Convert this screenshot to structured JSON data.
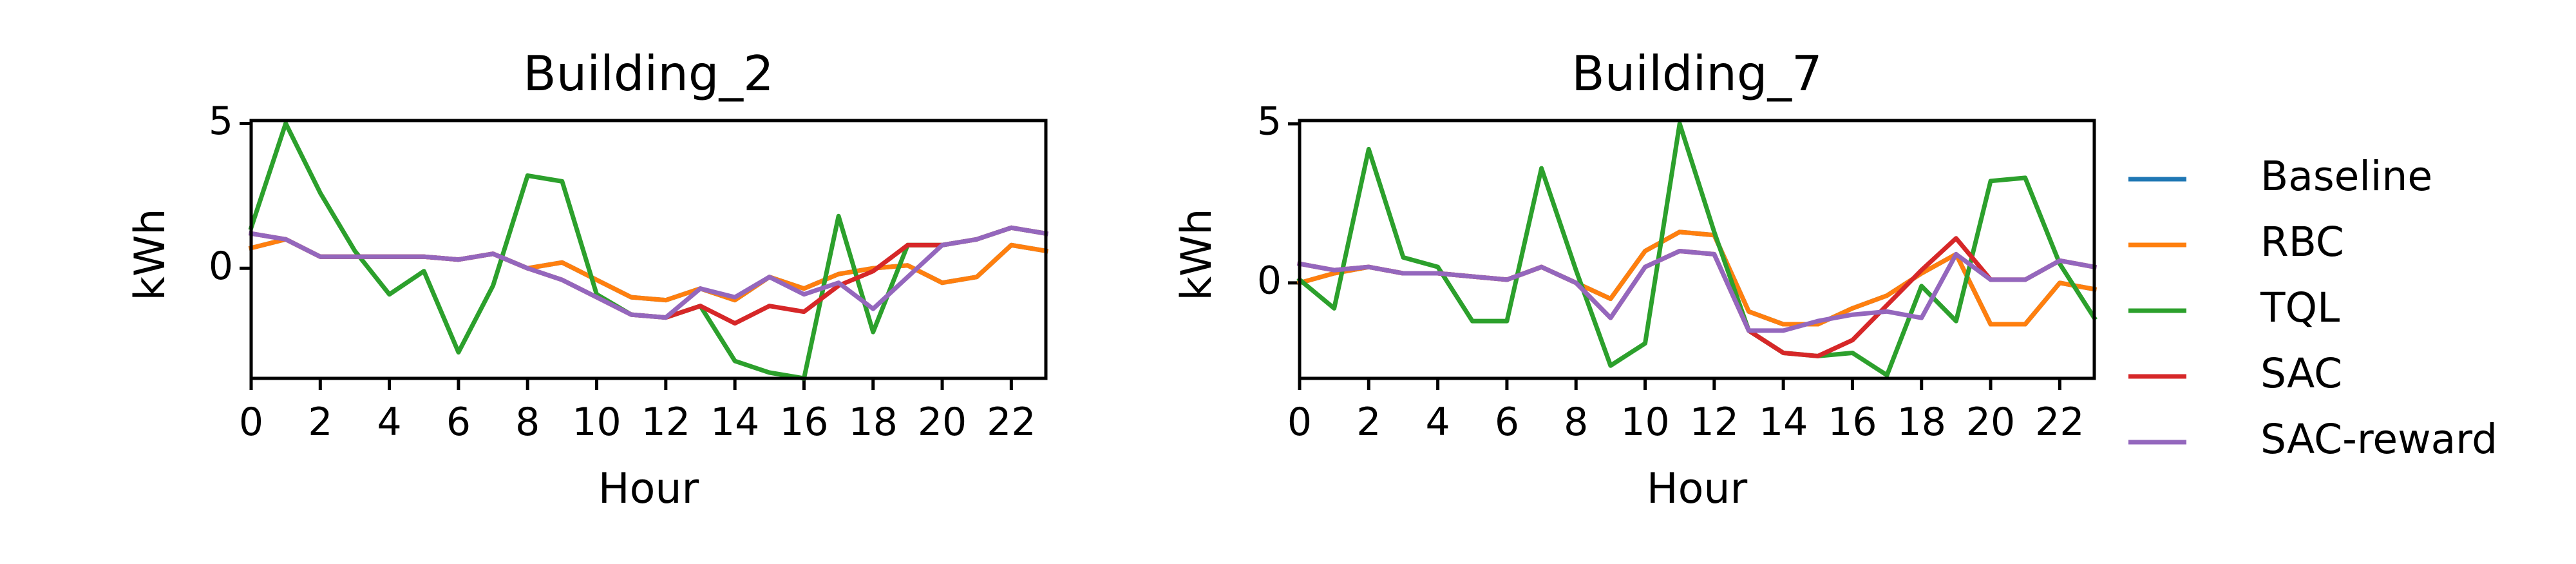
{
  "colors": {
    "Baseline": "#1f77b4",
    "RBC": "#ff7f0e",
    "TQL": "#2ca02c",
    "SAC": "#d62728",
    "SAC-reward": "#9467bd"
  },
  "legend": {
    "placement": "right",
    "entries": [
      "Baseline",
      "RBC",
      "TQL",
      "SAC",
      "SAC-reward"
    ]
  },
  "chart_data": [
    {
      "type": "line",
      "title": "Building_2",
      "xlabel": "Hour",
      "ylabel": "kWh",
      "xlim": [
        0,
        23
      ],
      "ylim": [
        -3.8,
        5.1
      ],
      "xticks": [
        0,
        2,
        4,
        6,
        8,
        10,
        12,
        14,
        16,
        18,
        20,
        22
      ],
      "yticks": [
        0,
        5
      ],
      "grid": false,
      "x": [
        0,
        1,
        2,
        3,
        4,
        5,
        6,
        7,
        8,
        9,
        10,
        11,
        12,
        13,
        14,
        15,
        16,
        17,
        18,
        19,
        20,
        21,
        22,
        23
      ],
      "series": [
        {
          "name": "Baseline",
          "values": [
            0.7,
            1.0,
            0.4,
            0.4,
            0.4,
            0.4,
            0.3,
            0.5,
            0.0,
            0.2,
            -0.4,
            -1.0,
            -1.1,
            -0.7,
            -1.1,
            -0.3,
            -0.7,
            -0.2,
            0.0,
            0.1,
            -0.5,
            -0.3,
            0.8,
            0.6
          ]
        },
        {
          "name": "RBC",
          "values": [
            0.7,
            1.0,
            0.4,
            0.4,
            0.4,
            0.4,
            0.3,
            0.5,
            0.0,
            0.2,
            -0.4,
            -1.0,
            -1.1,
            -0.7,
            -1.1,
            -0.3,
            -0.7,
            -0.2,
            0.0,
            0.1,
            -0.5,
            -0.3,
            0.8,
            0.6
          ]
        },
        {
          "name": "TQL",
          "values": [
            1.4,
            5.0,
            2.6,
            0.6,
            -0.9,
            -0.1,
            -2.9,
            -0.6,
            3.2,
            3.0,
            -0.9,
            -1.6,
            -1.7,
            -1.3,
            -3.2,
            -3.6,
            -3.8,
            1.8,
            -2.2,
            0.8,
            0.8,
            1.0,
            1.4,
            1.2
          ]
        },
        {
          "name": "SAC",
          "values": [
            1.2,
            1.0,
            0.4,
            0.4,
            0.4,
            0.4,
            0.3,
            0.5,
            0.0,
            -0.4,
            -1.0,
            -1.6,
            -1.7,
            -1.3,
            -1.9,
            -1.3,
            -1.5,
            -0.6,
            -0.1,
            0.8,
            0.8,
            1.0,
            1.4,
            1.2
          ]
        },
        {
          "name": "SAC-reward",
          "values": [
            1.2,
            1.0,
            0.4,
            0.4,
            0.4,
            0.4,
            0.3,
            0.5,
            0.0,
            -0.4,
            -1.0,
            -1.6,
            -1.7,
            -0.7,
            -1.0,
            -0.3,
            -0.9,
            -0.5,
            -1.4,
            -0.3,
            0.8,
            1.0,
            1.4,
            1.2
          ]
        }
      ]
    },
    {
      "type": "line",
      "title": "Building_7",
      "xlabel": "Hour",
      "ylabel": "kWh",
      "xlim": [
        0,
        23
      ],
      "ylim": [
        -3.0,
        5.1
      ],
      "xticks": [
        0,
        2,
        4,
        6,
        8,
        10,
        12,
        14,
        16,
        18,
        20,
        22
      ],
      "yticks": [
        0,
        5
      ],
      "grid": false,
      "x": [
        0,
        1,
        2,
        3,
        4,
        5,
        6,
        7,
        8,
        9,
        10,
        11,
        12,
        13,
        14,
        15,
        16,
        17,
        18,
        19,
        20,
        21,
        22,
        23
      ],
      "series": [
        {
          "name": "Baseline",
          "values": [
            0.0,
            0.3,
            0.5,
            0.3,
            0.3,
            0.2,
            0.1,
            0.5,
            0.0,
            -0.5,
            1.0,
            1.6,
            1.5,
            -0.9,
            -1.3,
            -1.3,
            -0.8,
            -0.4,
            0.3,
            0.9,
            -1.3,
            -1.3,
            0.0,
            -0.2
          ]
        },
        {
          "name": "RBC",
          "values": [
            0.0,
            0.3,
            0.5,
            0.3,
            0.3,
            0.2,
            0.1,
            0.5,
            0.0,
            -0.5,
            1.0,
            1.6,
            1.5,
            -0.9,
            -1.3,
            -1.3,
            -0.8,
            -0.4,
            0.3,
            0.9,
            -1.3,
            -1.3,
            0.0,
            -0.2
          ]
        },
        {
          "name": "TQL",
          "values": [
            0.1,
            -0.8,
            4.2,
            0.8,
            0.5,
            -1.2,
            -1.2,
            3.6,
            0.4,
            -2.6,
            -1.9,
            5.0,
            1.6,
            -1.5,
            -2.2,
            -2.3,
            -2.2,
            -2.9,
            -0.1,
            -1.2,
            3.2,
            3.3,
            0.6,
            -1.1
          ]
        },
        {
          "name": "SAC",
          "values": [
            0.6,
            0.4,
            0.5,
            0.3,
            0.3,
            0.2,
            0.1,
            0.5,
            0.0,
            -1.1,
            0.5,
            1.0,
            0.9,
            -1.5,
            -2.2,
            -2.3,
            -1.8,
            -0.7,
            0.4,
            1.4,
            0.1,
            0.1,
            0.7,
            0.5
          ]
        },
        {
          "name": "SAC-reward",
          "values": [
            0.6,
            0.4,
            0.5,
            0.3,
            0.3,
            0.2,
            0.1,
            0.5,
            0.0,
            -1.1,
            0.5,
            1.0,
            0.9,
            -1.5,
            -1.5,
            -1.2,
            -1.0,
            -0.9,
            -1.1,
            0.9,
            0.1,
            0.1,
            0.7,
            0.5
          ]
        }
      ]
    }
  ]
}
